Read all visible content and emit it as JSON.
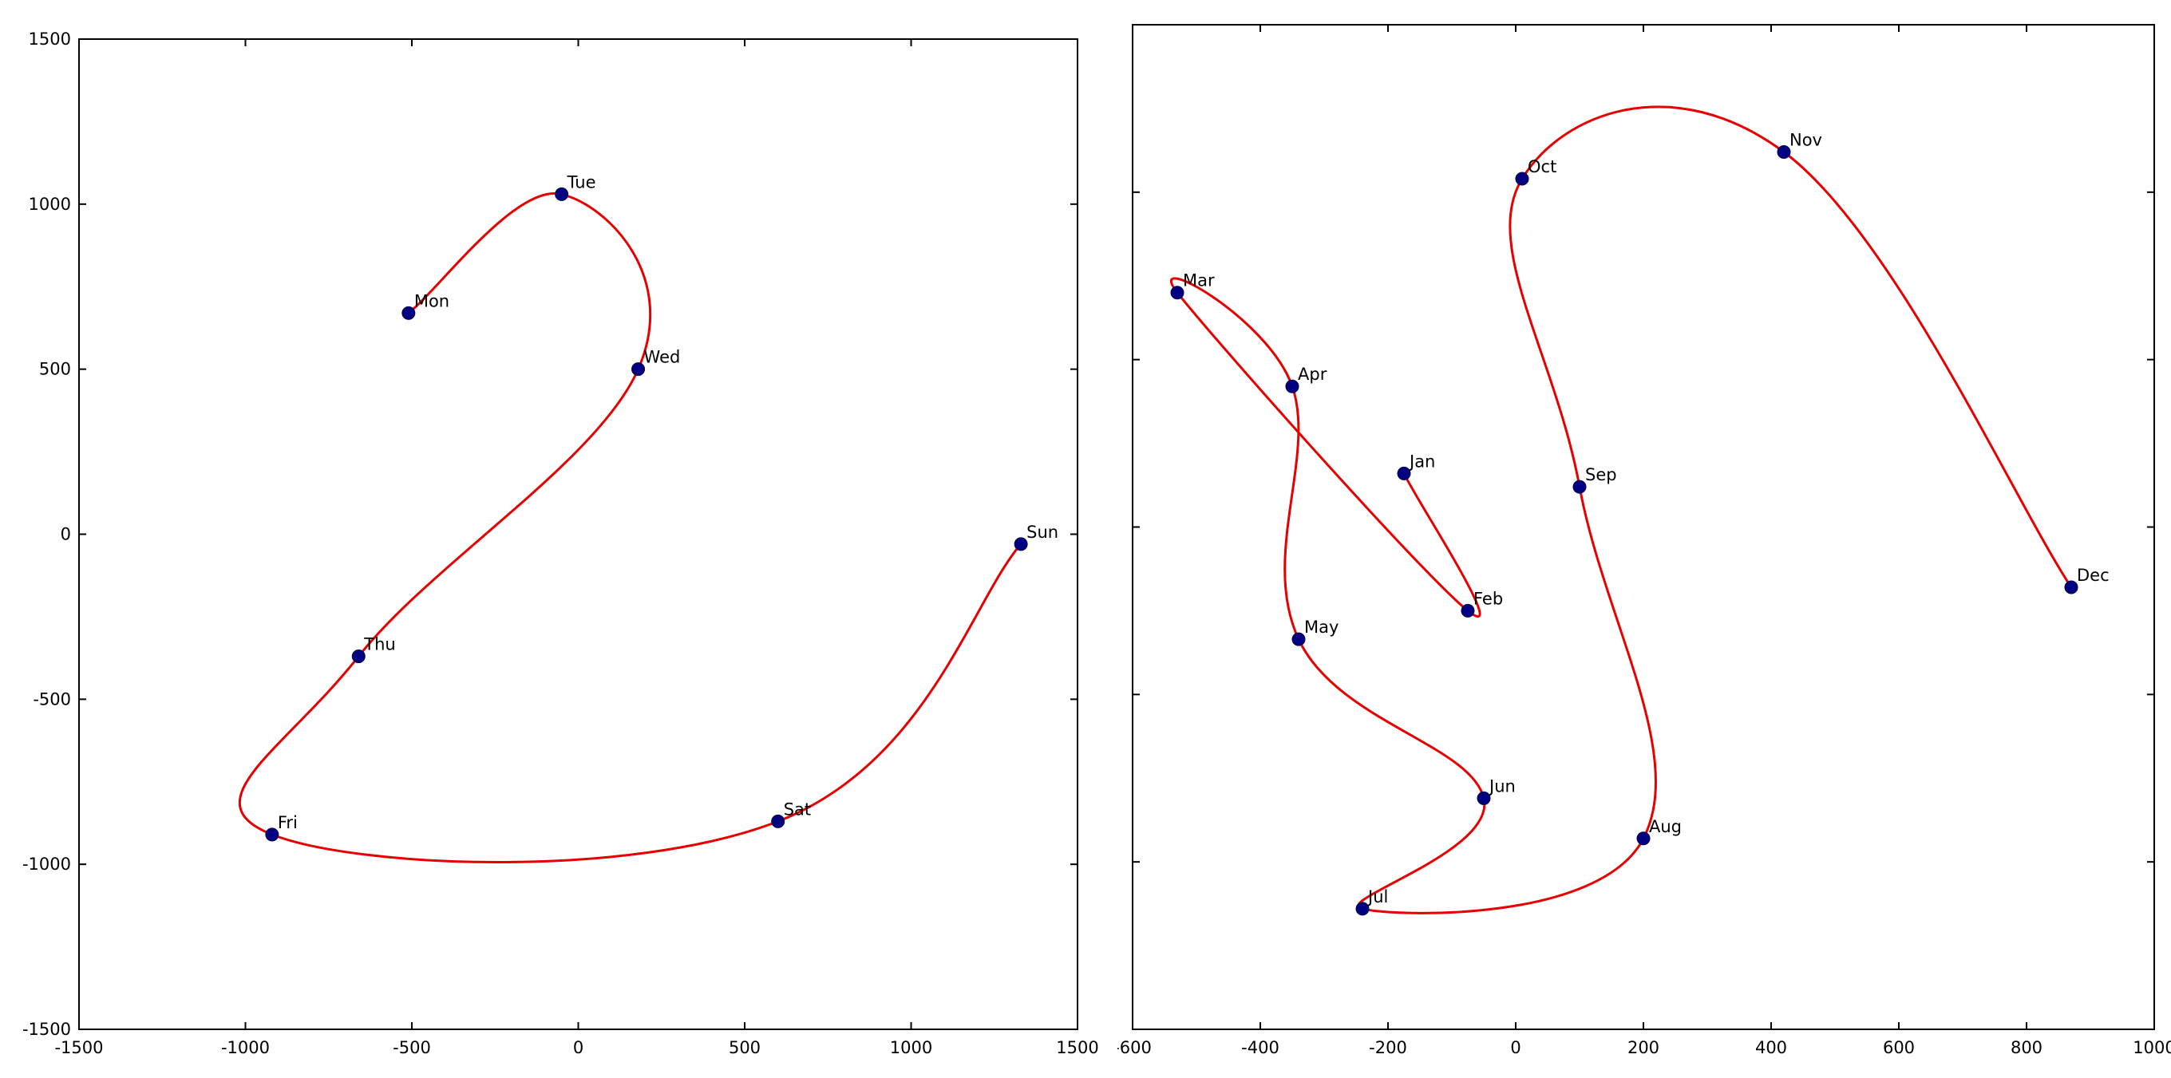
{
  "page": {
    "background": "#ffffff"
  },
  "chart_data": [
    {
      "id": "weekdays",
      "type": "line",
      "title": "",
      "grid": false,
      "legend": null,
      "xlim": [
        -1500,
        1500
      ],
      "ylim": [
        -1500,
        1500
      ],
      "xtick_values": [
        -1500,
        -1000,
        -500,
        0,
        500,
        1000,
        1500
      ],
      "xtick_labels": [
        "-1500",
        "-1000",
        "-500",
        "0",
        "500",
        "1000",
        "1500"
      ],
      "ytick_values": [
        -1500,
        -1000,
        -500,
        0,
        500,
        1000,
        1500
      ],
      "ytick_labels": [
        "-1500",
        "-1000",
        "-500",
        "0",
        "500",
        "1000",
        "1500"
      ],
      "show_xtick_labels": true,
      "show_ytick_labels": true,
      "line_color": "#e60000",
      "marker_color": "#000080",
      "marker_edge_color": "#00004d",
      "label_color": "#000000",
      "points": [
        {
          "label": "Mon",
          "x": -510,
          "y": 670
        },
        {
          "label": "Tue",
          "x": -50,
          "y": 1030
        },
        {
          "label": "Wed",
          "x": 180,
          "y": 500
        },
        {
          "label": "Thu",
          "x": -660,
          "y": -370
        },
        {
          "label": "Fri",
          "x": -920,
          "y": -910
        },
        {
          "label": "Sat",
          "x": 600,
          "y": -870
        },
        {
          "label": "Sun",
          "x": 1330,
          "y": -30
        }
      ]
    },
    {
      "id": "months",
      "type": "line",
      "title": "",
      "grid": false,
      "legend": null,
      "xlim": [
        -600,
        1000
      ],
      "ylim": [
        -1500,
        1500
      ],
      "xtick_values": [
        -600,
        -400,
        -200,
        0,
        200,
        400,
        600,
        800,
        1000
      ],
      "xtick_labels": [
        "-600",
        "-400",
        "-200",
        "0",
        "200",
        "400",
        "600",
        "800",
        "1000"
      ],
      "ytick_values": [
        -1500,
        -1000,
        -500,
        0,
        500,
        1000,
        1500
      ],
      "ytick_labels": [],
      "show_xtick_labels": true,
      "show_ytick_labels": false,
      "line_color": "#e60000",
      "marker_color": "#000080",
      "marker_edge_color": "#00004d",
      "label_color": "#000000",
      "points": [
        {
          "label": "Jan",
          "x": -175,
          "y": 160
        },
        {
          "label": "Feb",
          "x": -75,
          "y": -250
        },
        {
          "label": "Mar",
          "x": -530,
          "y": 700
        },
        {
          "label": "Apr",
          "x": -350,
          "y": 420
        },
        {
          "label": "May",
          "x": -340,
          "y": -335
        },
        {
          "label": "Jun",
          "x": -50,
          "y": -810
        },
        {
          "label": "Jul",
          "x": -240,
          "y": -1140
        },
        {
          "label": "Aug",
          "x": 200,
          "y": -930
        },
        {
          "label": "Sep",
          "x": 100,
          "y": 120
        },
        {
          "label": "Oct",
          "x": 10,
          "y": 1040
        },
        {
          "label": "Nov",
          "x": 420,
          "y": 1120
        },
        {
          "label": "Dec",
          "x": 870,
          "y": -180
        }
      ]
    }
  ]
}
